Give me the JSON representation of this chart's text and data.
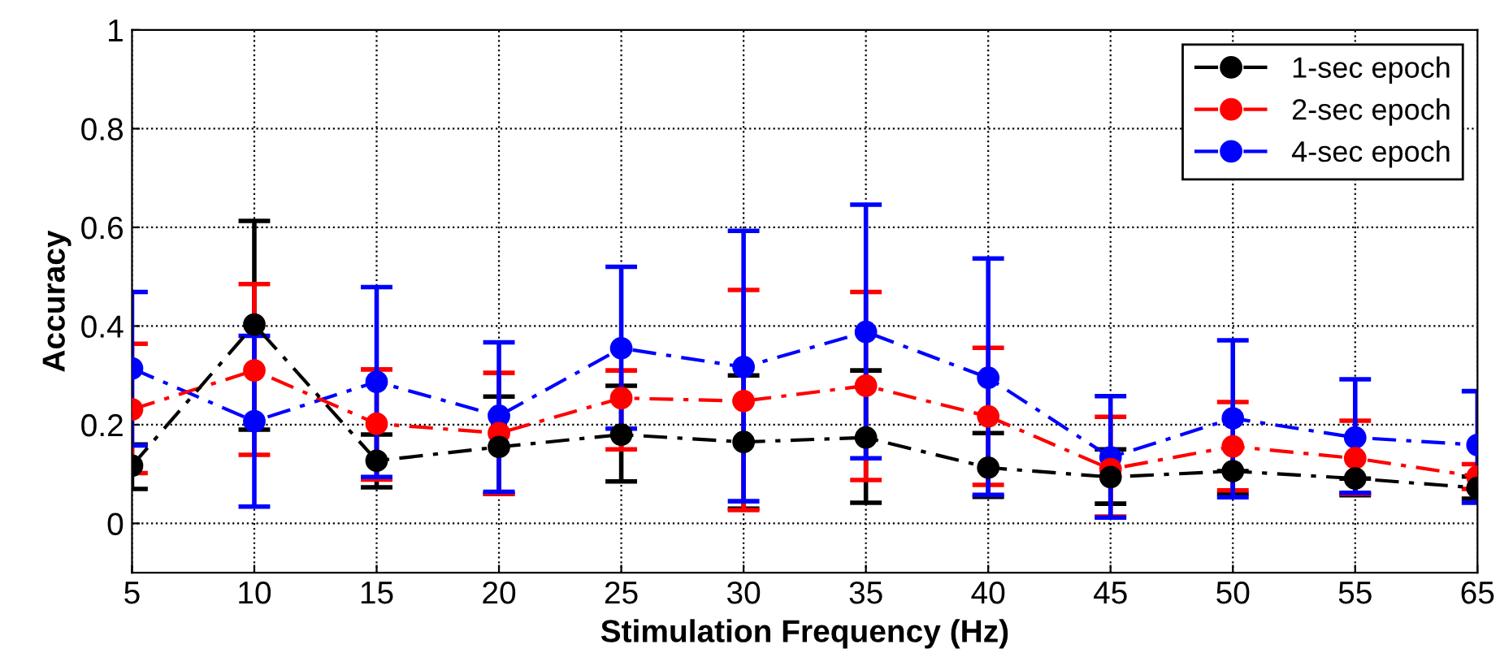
{
  "chart_data": {
    "type": "line",
    "xlabel": "Stimulation Frequency (Hz)",
    "ylabel": "Accuracy",
    "categories": [
      "5",
      "10",
      "15",
      "20",
      "25",
      "30",
      "35",
      "40",
      "45",
      "50",
      "55",
      "65"
    ],
    "ylim": [
      -0.1,
      1
    ],
    "yticks": [
      0,
      0.2,
      0.4,
      0.6,
      0.8,
      1
    ],
    "grid": true,
    "legend": "top right",
    "marker": "circle",
    "line_style": "dashed",
    "series": [
      {
        "name": "1-sec epoch",
        "color": "#000000",
        "values": [
          0.117,
          0.403,
          0.127,
          0.155,
          0.18,
          0.165,
          0.174,
          0.113,
          0.094,
          0.106,
          0.091,
          0.072
        ],
        "errors": [
          [
            0.07,
            0.16
          ],
          [
            0.19,
            0.613
          ],
          [
            0.073,
            0.18
          ],
          [
            0.06,
            0.257
          ],
          [
            0.085,
            0.279
          ],
          [
            0.03,
            0.3
          ],
          [
            0.042,
            0.31
          ],
          [
            0.054,
            0.183
          ],
          [
            0.04,
            0.15
          ],
          [
            0.06,
            0.106
          ],
          [
            0.057,
            0.091
          ],
          [
            0.05,
            0.095
          ]
        ]
      },
      {
        "name": "2-sec epoch",
        "color": "#ff0000",
        "values": [
          0.231,
          0.31,
          0.202,
          0.183,
          0.254,
          0.248,
          0.279,
          0.217,
          0.11,
          0.156,
          0.132,
          0.095
        ],
        "errors": [
          [
            0.102,
            0.364
          ],
          [
            0.139,
            0.485
          ],
          [
            0.089,
            0.312
          ],
          [
            0.06,
            0.305
          ],
          [
            0.15,
            0.31
          ],
          [
            0.027,
            0.473
          ],
          [
            0.088,
            0.469
          ],
          [
            0.078,
            0.356
          ],
          [
            0.014,
            0.216
          ],
          [
            0.067,
            0.246
          ],
          [
            0.06,
            0.208
          ],
          [
            0.07,
            0.12
          ]
        ]
      },
      {
        "name": "4-sec epoch",
        "color": "#0000ff",
        "values": [
          0.314,
          0.207,
          0.287,
          0.218,
          0.355,
          0.317,
          0.388,
          0.295,
          0.134,
          0.213,
          0.174,
          0.159
        ],
        "errors": [
          [
            0.158,
            0.469
          ],
          [
            0.034,
            0.38
          ],
          [
            0.094,
            0.479
          ],
          [
            0.064,
            0.367
          ],
          [
            0.192,
            0.52
          ],
          [
            0.045,
            0.593
          ],
          [
            0.132,
            0.646
          ],
          [
            0.058,
            0.537
          ],
          [
            0.012,
            0.258
          ],
          [
            0.053,
            0.371
          ],
          [
            0.062,
            0.292
          ],
          [
            0.042,
            0.268
          ]
        ]
      }
    ]
  }
}
